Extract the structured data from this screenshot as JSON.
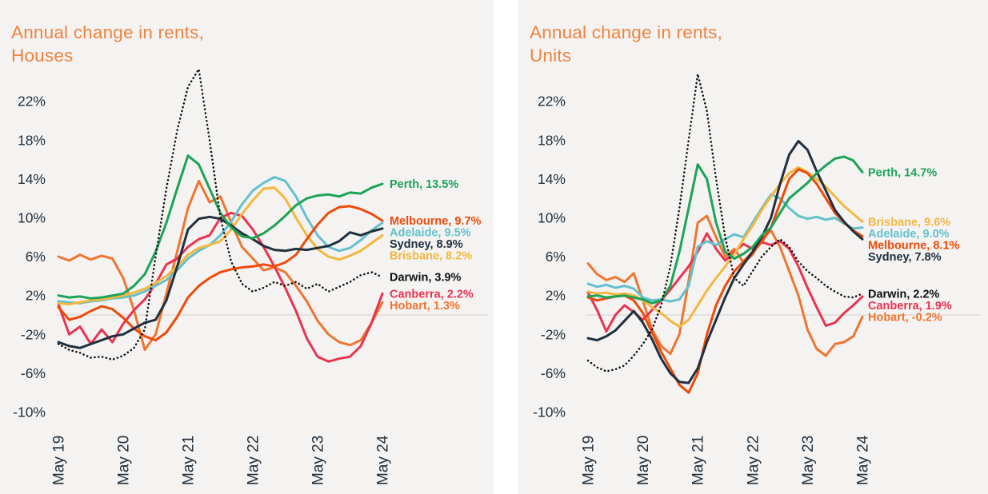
{
  "page": {
    "background": "#ffffff",
    "panel_background": "#f4f3f2",
    "title_color": "#F0823E",
    "axis_text_color": "#22303C",
    "zero_gridline_color": "#DEDCDB"
  },
  "charts": [
    {
      "id": "houses",
      "title_line1": "Annual change in rents,",
      "title_line2": "Houses",
      "y_ticks": [
        "22%",
        "18%",
        "14%",
        "10%",
        "6%",
        "2%",
        "-2%",
        "-6%",
        "-10%"
      ],
      "x_ticks": [
        "May 19",
        "May 20",
        "May 21",
        "May 22",
        "May 23",
        "May 24"
      ],
      "chart_data": {
        "type": "line",
        "x_axis": "months May 2019 to May 2024, one point every 2 months",
        "y_axis_percent_range": [
          -10,
          22
        ],
        "y_tick_values": [
          22,
          18,
          14,
          10,
          6,
          2,
          -2,
          -6,
          -10
        ],
        "legend_position": "right, colored labels with final values",
        "grid": "single zero line only",
        "series": [
          {
            "name": "Hobart",
            "legend": "Hobart, 1.3%",
            "final_value": 1.3,
            "color": "#F0752F",
            "line_style": "solid",
            "values": [
              6.0,
              5.6,
              6.2,
              5.7,
              6.1,
              5.8,
              3.8,
              0.5,
              -3.6,
              -2.0,
              2.2,
              6.5,
              11.0,
              13.8,
              11.6,
              12.2,
              9.5,
              7.0,
              5.8,
              4.6,
              4.9,
              4.4,
              3.0,
              1.4,
              -0.6,
              -2.0,
              -2.8,
              -3.1,
              -2.6,
              -0.8,
              1.3
            ]
          },
          {
            "name": "Canberra",
            "legend": "Canberra, 2.2%",
            "final_value": 2.2,
            "color": "#EA3351",
            "line_style": "solid",
            "values": [
              1.1,
              -2.0,
              -1.2,
              -3.0,
              -1.5,
              -2.8,
              -0.9,
              0.5,
              1.6,
              3.2,
              5.2,
              5.8,
              7.0,
              7.8,
              8.2,
              10.0,
              10.5,
              10.2,
              8.8,
              7.0,
              5.0,
              2.8,
              0.4,
              -2.4,
              -4.3,
              -4.8,
              -4.5,
              -4.3,
              -3.2,
              -0.8,
              2.2
            ]
          },
          {
            "name": "Adelaide",
            "legend": "Adelaide, 9.5%",
            "final_value": 9.5,
            "color": "#64C0CC",
            "line_style": "solid",
            "values": [
              1.4,
              1.3,
              1.2,
              1.4,
              1.5,
              1.7,
              1.8,
              2.0,
              2.4,
              3.0,
              3.6,
              4.6,
              5.8,
              6.6,
              7.2,
              8.2,
              9.6,
              11.4,
              12.8,
              13.6,
              14.2,
              13.8,
              12.2,
              10.0,
              8.2,
              7.0,
              6.6,
              6.9,
              7.7,
              8.7,
              9.5
            ]
          },
          {
            "name": "Brisbane",
            "legend": "Brisbane, 8.2%",
            "final_value": 8.2,
            "color": "#F4B73F",
            "line_style": "solid",
            "values": [
              1.2,
              1.1,
              1.3,
              1.5,
              1.6,
              1.8,
              2.0,
              2.3,
              2.7,
              3.3,
              4.0,
              5.0,
              6.2,
              6.9,
              7.2,
              7.6,
              8.8,
              10.4,
              11.8,
              13.0,
              13.1,
              12.0,
              10.0,
              8.2,
              6.8,
              6.0,
              5.7,
              6.1,
              6.6,
              7.4,
              8.2
            ]
          },
          {
            "name": "Melbourne",
            "legend": "Melbourne, 9.7%",
            "final_value": 9.7,
            "color": "#EE4A08",
            "line_style": "solid",
            "values": [
              0.8,
              -0.5,
              -0.2,
              0.4,
              0.9,
              0.6,
              -0.3,
              -1.4,
              -2.2,
              -2.6,
              -1.8,
              -0.2,
              1.8,
              3.0,
              3.8,
              4.4,
              4.7,
              4.9,
              5.0,
              5.2,
              5.0,
              5.4,
              6.2,
              7.8,
              9.3,
              10.5,
              11.1,
              11.2,
              10.9,
              10.4,
              9.7
            ]
          },
          {
            "name": "Sydney",
            "legend": "Sydney, 8.9%",
            "final_value": 8.9,
            "color": "#20303F",
            "line_style": "solid",
            "values": [
              -2.8,
              -3.2,
              -3.4,
              -3.0,
              -2.6,
              -2.2,
              -2.0,
              -1.4,
              -0.8,
              -0.5,
              1.5,
              5.0,
              8.8,
              9.9,
              10.1,
              9.9,
              9.2,
              8.4,
              7.8,
              7.1,
              6.7,
              6.6,
              6.8,
              6.7,
              6.9,
              7.1,
              7.6,
              8.5,
              8.2,
              8.6,
              8.9
            ]
          },
          {
            "name": "Perth",
            "legend": "Perth, 13.5%",
            "final_value": 13.5,
            "color": "#1CA357",
            "line_style": "solid",
            "values": [
              2.0,
              1.8,
              1.9,
              1.7,
              1.8,
              2.0,
              2.2,
              3.0,
              4.2,
              6.5,
              9.5,
              13.0,
              16.4,
              15.5,
              13.0,
              10.5,
              9.0,
              8.1,
              7.9,
              8.4,
              9.2,
              10.2,
              11.3,
              12.0,
              12.3,
              12.4,
              12.2,
              12.6,
              12.5,
              13.1,
              13.5
            ]
          },
          {
            "name": "Darwin",
            "legend": "Darwin, 3.9%",
            "final_value": 3.9,
            "color": "#111111",
            "line_style": "dotted",
            "values": [
              -3.0,
              -3.6,
              -3.9,
              -4.4,
              -4.3,
              -4.6,
              -4.2,
              -3.4,
              -1.5,
              6.0,
              13.0,
              19.0,
              23.5,
              25.3,
              18.0,
              10.0,
              5.5,
              3.2,
              2.4,
              2.8,
              3.4,
              3.0,
              3.4,
              2.7,
              3.2,
              2.4,
              2.9,
              3.4,
              4.1,
              4.4,
              3.9
            ]
          }
        ]
      }
    },
    {
      "id": "units",
      "title_line1": "Annual change in rents,",
      "title_line2": "Units",
      "y_ticks": [
        "22%",
        "18%",
        "14%",
        "10%",
        "6%",
        "2%",
        "-2%",
        "-6%",
        "-10%"
      ],
      "x_ticks": [
        "May 19",
        "May 20",
        "May 21",
        "May 22",
        "May 23",
        "May 24"
      ],
      "chart_data": {
        "type": "line",
        "x_axis": "months May 2019 to May 2024, one point every 2 months",
        "y_axis_percent_range": [
          -10,
          22
        ],
        "y_tick_values": [
          22,
          18,
          14,
          10,
          6,
          2,
          -2,
          -6,
          -10
        ],
        "legend_position": "right, colored labels with final values",
        "grid": "single zero line only",
        "series": [
          {
            "name": "Hobart",
            "legend": "Hobart, -0.2%",
            "final_value": -0.2,
            "color": "#F0752F",
            "line_style": "solid",
            "values": [
              5.3,
              4.2,
              3.6,
              3.9,
              3.4,
              4.3,
              1.5,
              -1.5,
              -3.2,
              -4.0,
              -2.0,
              3.5,
              9.5,
              10.2,
              8.0,
              6.0,
              6.8,
              5.4,
              6.2,
              7.8,
              8.7,
              7.0,
              4.5,
              2.0,
              -1.5,
              -3.5,
              -4.2,
              -3.0,
              -2.8,
              -2.2,
              -0.2
            ]
          },
          {
            "name": "Canberra",
            "legend": "Canberra, 1.9%",
            "final_value": 1.9,
            "color": "#EA3351",
            "line_style": "solid",
            "values": [
              2.3,
              0.5,
              -1.7,
              0.0,
              1.0,
              0.3,
              -0.5,
              0.5,
              1.5,
              2.6,
              3.8,
              5.0,
              6.5,
              8.4,
              6.8,
              5.6,
              6.5,
              7.3,
              6.8,
              7.5,
              7.2,
              7.6,
              6.8,
              5.0,
              2.8,
              0.8,
              -1.1,
              -0.8,
              0.2,
              1.0,
              1.9
            ]
          },
          {
            "name": "Adelaide",
            "legend": "Adelaide, 9.0%",
            "final_value": 9.0,
            "color": "#64C0CC",
            "line_style": "solid",
            "values": [
              3.2,
              2.9,
              3.1,
              2.8,
              3.0,
              2.7,
              1.8,
              1.5,
              1.6,
              1.4,
              1.6,
              3.0,
              7.0,
              7.6,
              7.2,
              7.8,
              8.3,
              8.0,
              9.5,
              11.0,
              12.4,
              12.0,
              11.0,
              10.2,
              9.9,
              10.1,
              9.8,
              10.0,
              9.4,
              8.9,
              9.0
            ]
          },
          {
            "name": "Brisbane",
            "legend": "Brisbane, 9.6%",
            "final_value": 9.6,
            "color": "#F4B73F",
            "line_style": "solid",
            "values": [
              2.4,
              2.2,
              2.3,
              2.1,
              2.2,
              2.0,
              1.5,
              0.8,
              0.2,
              -0.6,
              -1.2,
              -0.5,
              1.0,
              2.5,
              3.8,
              5.0,
              6.3,
              7.8,
              9.2,
              10.8,
              12.2,
              13.5,
              14.6,
              15.2,
              14.7,
              14.0,
              13.2,
              12.2,
              11.2,
              10.4,
              9.6
            ]
          },
          {
            "name": "Melbourne",
            "legend": "Melbourne, 8.1%",
            "final_value": 8.1,
            "color": "#EE4A08",
            "line_style": "solid",
            "values": [
              1.8,
              1.5,
              1.7,
              1.9,
              2.0,
              1.5,
              0.2,
              -1.8,
              -3.8,
              -5.5,
              -7.2,
              -8.0,
              -6.0,
              -2.0,
              1.0,
              3.0,
              4.5,
              5.5,
              6.5,
              7.5,
              9.0,
              11.5,
              14.0,
              15.0,
              14.6,
              13.5,
              12.0,
              10.5,
              9.5,
              8.7,
              8.1
            ]
          },
          {
            "name": "Sydney",
            "legend": "Sydney, 7.8%",
            "final_value": 7.8,
            "color": "#20303F",
            "line_style": "solid",
            "values": [
              -2.4,
              -2.6,
              -2.2,
              -1.6,
              -0.6,
              0.4,
              -0.8,
              -2.5,
              -4.5,
              -6.0,
              -6.9,
              -7.0,
              -5.5,
              -2.8,
              -0.5,
              1.8,
              3.8,
              5.2,
              6.5,
              8.0,
              10.0,
              13.5,
              16.5,
              17.9,
              17.0,
              14.8,
              12.8,
              10.8,
              9.6,
              8.6,
              7.8
            ]
          },
          {
            "name": "Perth",
            "legend": "Perth, 14.7%",
            "final_value": 14.7,
            "color": "#1CA357",
            "line_style": "solid",
            "values": [
              1.9,
              2.0,
              1.8,
              1.9,
              2.0,
              1.8,
              1.6,
              1.2,
              1.5,
              3.0,
              6.5,
              11.0,
              15.5,
              14.0,
              9.5,
              6.5,
              5.8,
              6.3,
              7.0,
              8.2,
              9.0,
              10.5,
              12.0,
              12.8,
              13.6,
              14.6,
              15.4,
              16.1,
              16.3,
              15.9,
              14.7
            ]
          },
          {
            "name": "Darwin",
            "legend": "Darwin, 2.2%",
            "final_value": 2.2,
            "color": "#111111",
            "line_style": "dotted",
            "values": [
              -4.7,
              -5.4,
              -5.8,
              -5.6,
              -5.2,
              -4.2,
              -3.0,
              -1.5,
              1.0,
              5.0,
              11.0,
              18.0,
              24.8,
              21.0,
              14.0,
              8.0,
              3.8,
              3.0,
              4.5,
              6.0,
              7.0,
              7.8,
              7.0,
              5.5,
              4.5,
              3.8,
              3.0,
              2.4,
              1.9,
              1.8,
              2.2
            ]
          }
        ]
      }
    }
  ]
}
